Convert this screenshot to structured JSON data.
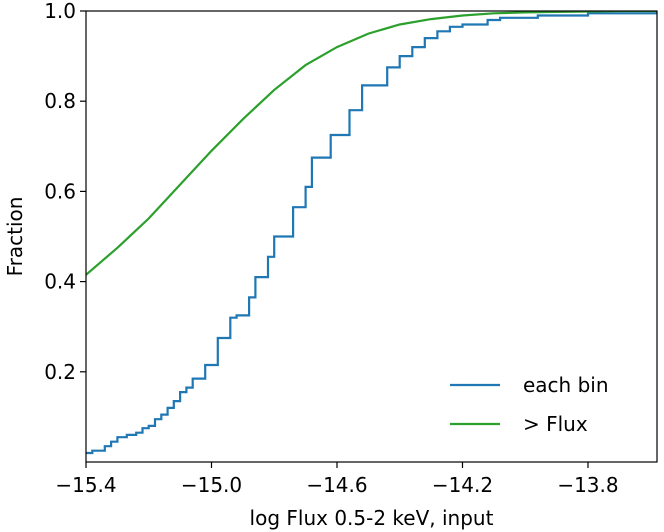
{
  "chart_data": {
    "type": "line",
    "xlabel": "log Flux 0.5-2 keV, input",
    "ylabel": "Fraction",
    "xlim": [
      -15.4,
      -13.58
    ],
    "ylim": [
      0.0,
      1.0
    ],
    "xticks": [
      {
        "value": -15.4,
        "label": "−15.4"
      },
      {
        "value": -15.0,
        "label": "−15.0"
      },
      {
        "value": -14.6,
        "label": "−14.6"
      },
      {
        "value": -14.2,
        "label": "−14.2"
      },
      {
        "value": -13.8,
        "label": "−13.8"
      }
    ],
    "yticks": [
      {
        "value": 0.2,
        "label": "0.2"
      },
      {
        "value": 0.4,
        "label": "0.4"
      },
      {
        "value": 0.6,
        "label": "0.6"
      },
      {
        "value": 0.8,
        "label": "0.8"
      },
      {
        "value": 1.0,
        "label": "1.0"
      }
    ],
    "grid": false,
    "legend_position": "lower-right",
    "series": [
      {
        "name": "each bin",
        "color": "#1f77b4",
        "style": "step",
        "x": [
          -15.4,
          -15.38,
          -15.36,
          -15.34,
          -15.32,
          -15.3,
          -15.27,
          -15.24,
          -15.22,
          -15.2,
          -15.18,
          -15.16,
          -15.14,
          -15.12,
          -15.1,
          -15.08,
          -15.06,
          -15.02,
          -15.0,
          -14.98,
          -14.94,
          -14.92,
          -14.88,
          -14.86,
          -14.82,
          -14.8,
          -14.76,
          -14.74,
          -14.7,
          -14.68,
          -14.64,
          -14.62,
          -14.58,
          -14.56,
          -14.52,
          -14.48,
          -14.44,
          -14.4,
          -14.36,
          -14.32,
          -14.28,
          -14.24,
          -14.2,
          -14.16,
          -14.12,
          -14.08,
          -14.0,
          -13.96,
          -13.9,
          -13.8,
          -13.74,
          -13.58
        ],
        "y": [
          0.02,
          0.025,
          0.025,
          0.035,
          0.045,
          0.055,
          0.06,
          0.065,
          0.075,
          0.08,
          0.095,
          0.105,
          0.12,
          0.135,
          0.155,
          0.165,
          0.185,
          0.215,
          0.215,
          0.275,
          0.32,
          0.325,
          0.365,
          0.41,
          0.455,
          0.5,
          0.5,
          0.565,
          0.61,
          0.675,
          0.675,
          0.725,
          0.725,
          0.78,
          0.835,
          0.835,
          0.875,
          0.9,
          0.92,
          0.94,
          0.955,
          0.965,
          0.97,
          0.97,
          0.98,
          0.985,
          0.985,
          0.99,
          0.99,
          0.995,
          0.995,
          1.0
        ]
      },
      {
        "name": "> Flux",
        "color": "#2ca02c",
        "style": "line",
        "x": [
          -15.4,
          -15.3,
          -15.2,
          -15.1,
          -15.0,
          -14.9,
          -14.8,
          -14.7,
          -14.6,
          -14.5,
          -14.4,
          -14.3,
          -14.2,
          -14.1,
          -14.0,
          -13.9,
          -13.8,
          -13.7,
          -13.58
        ],
        "y": [
          0.415,
          0.475,
          0.54,
          0.615,
          0.69,
          0.76,
          0.825,
          0.88,
          0.92,
          0.95,
          0.97,
          0.982,
          0.99,
          0.995,
          0.997,
          0.998,
          0.999,
          1.0,
          1.0
        ]
      }
    ]
  }
}
